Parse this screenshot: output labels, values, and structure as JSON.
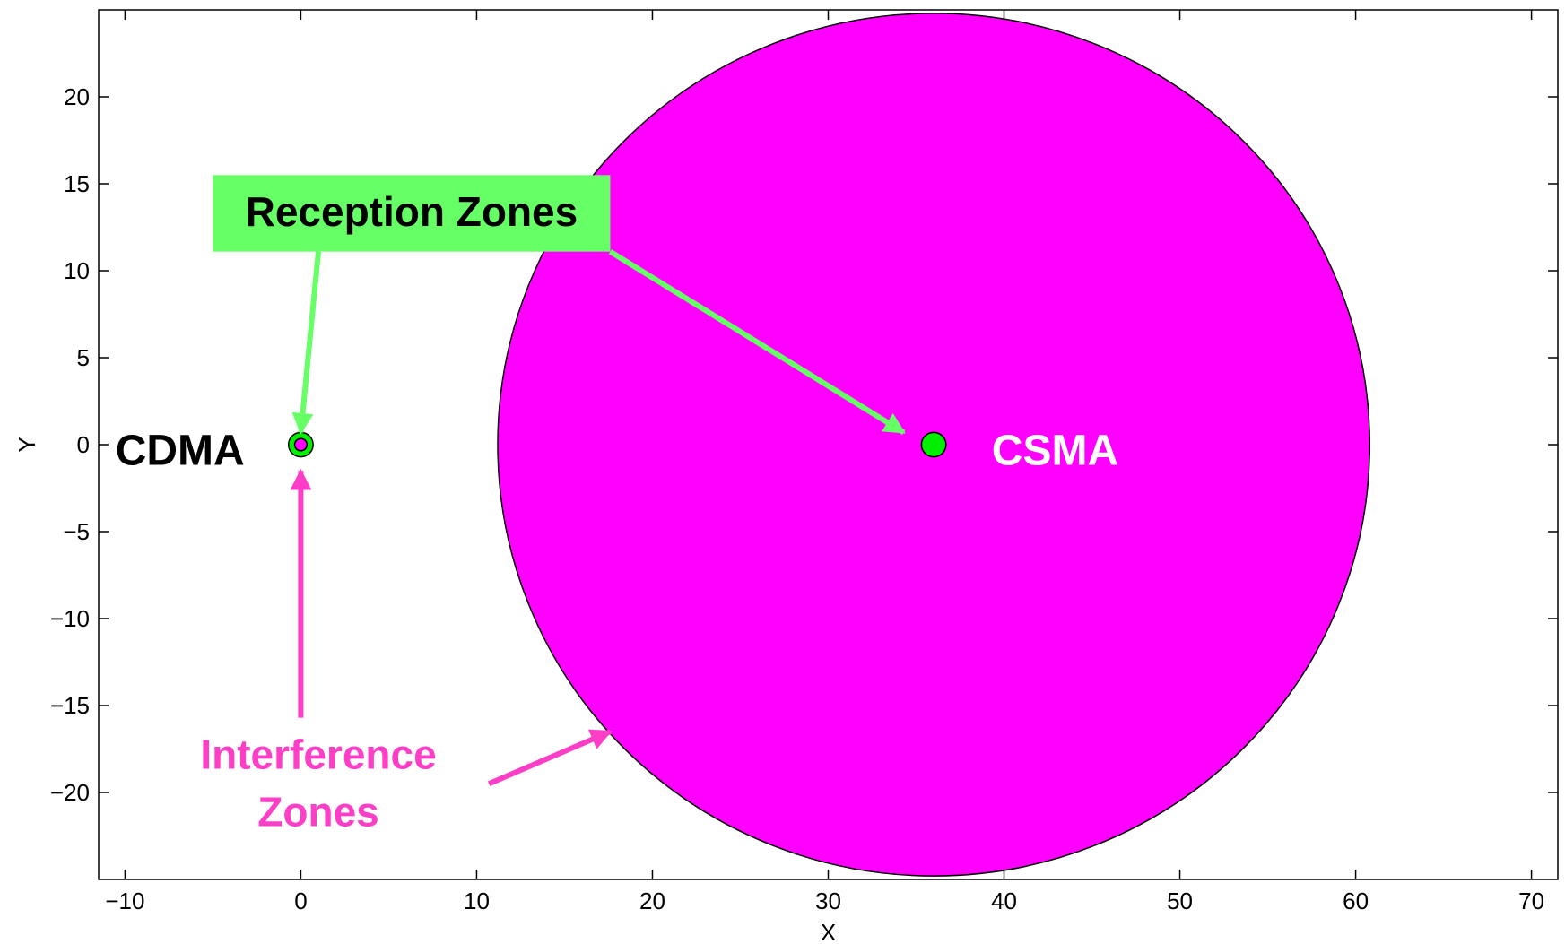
{
  "chart_data": {
    "type": "scatter",
    "title": "",
    "xlabel": "X",
    "ylabel": "Y",
    "xlim": [
      -11.5,
      71.5
    ],
    "ylim": [
      -25,
      25
    ],
    "xticks": [
      -10,
      0,
      10,
      20,
      30,
      40,
      50,
      60,
      70
    ],
    "yticks": [
      -20,
      -15,
      -10,
      -5,
      0,
      5,
      10,
      15,
      20
    ],
    "xtick_labels": [
      "−10",
      "0",
      "10",
      "20",
      "30",
      "40",
      "50",
      "60",
      "70"
    ],
    "ytick_labels": [
      "−20",
      "−15",
      "−10",
      "−5",
      "0",
      "5",
      "10",
      "15",
      "20"
    ],
    "grid": false,
    "colors": {
      "interference": "#ff00ff",
      "reception": "#00ee00",
      "reception_annotation": "#66ff66",
      "interference_annotation": "#ff3ec8"
    },
    "nodes": [
      {
        "name": "CDMA",
        "x": 0,
        "y": 0,
        "interference_radius": 0.35,
        "reception_radius": 0.7
      },
      {
        "name": "CSMA",
        "x": 36,
        "y": 0,
        "interference_radius": 24.8,
        "reception_radius": 0.7
      }
    ],
    "labels": [
      {
        "text": "CDMA",
        "x": -3.2,
        "y": -0.5,
        "color": "#000000",
        "anchor": "end"
      },
      {
        "text": "CSMA",
        "x": 39.3,
        "y": -0.5,
        "color": "#ffffff",
        "anchor": "start"
      }
    ],
    "annotations": {
      "reception": {
        "lines": [
          "Reception Zones"
        ],
        "x": 6.3,
        "y": 13.2,
        "box": {
          "x0": -5,
          "x1": 17.6,
          "y0": 11.1,
          "y1": 15.5
        },
        "arrows": [
          {
            "from": [
              1,
              11.1
            ],
            "to": [
              0,
              0.7
            ]
          },
          {
            "from": [
              17.6,
              11.1
            ],
            "to": [
              34.3,
              0.7
            ]
          }
        ]
      },
      "interference": {
        "lines": [
          "Interference",
          "Zones"
        ],
        "x": 1,
        "y": [
          -18,
          -21.3
        ],
        "arrows": [
          {
            "from": [
              0,
              -15.7
            ],
            "to": [
              0,
              -1.5
            ]
          },
          {
            "from": [
              10.7,
              -19.5
            ],
            "to": [
              17.6,
              -16.5
            ]
          }
        ]
      }
    }
  }
}
